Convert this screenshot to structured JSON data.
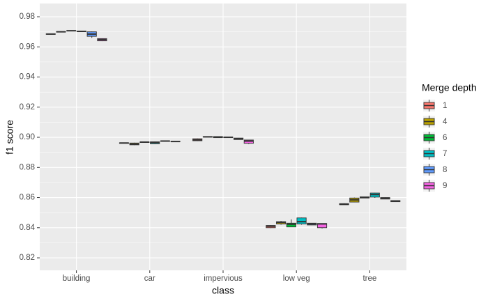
{
  "chart_data": {
    "type": "box",
    "x_label": "class",
    "y_label": "f1 score",
    "categories": [
      "building",
      "car",
      "impervious",
      "low veg",
      "tree"
    ],
    "ylim": [
      0.8117,
      0.9888
    ],
    "yticks": [
      0.82,
      0.84,
      0.86,
      0.88,
      {
        "value": 0.9,
        "label": "0.90"
      },
      0.92,
      0.94,
      0.96,
      0.98
    ],
    "grid": true,
    "legend_title": "Merge depth",
    "legend_position": "right",
    "series": [
      {
        "name": "1",
        "color": "#F8766D",
        "min": [
          0.9684,
          0.896,
          0.8975,
          0.8398,
          0.8552
        ],
        "q1": [
          0.9684,
          0.896,
          0.8977,
          0.84,
          0.8553
        ],
        "median": [
          0.9685,
          0.8962,
          0.8983,
          0.841,
          0.8555
        ],
        "q3": [
          0.9686,
          0.8963,
          0.899,
          0.8415,
          0.856
        ],
        "max": [
          0.9687,
          0.8964,
          0.8992,
          0.8417,
          0.8562
        ]
      },
      {
        "name": "4",
        "color": "#B79F00",
        "min": [
          0.9698,
          0.8948,
          0.9001,
          0.842,
          0.8568
        ],
        "q1": [
          0.9699,
          0.895,
          0.9002,
          0.8425,
          0.857
        ],
        "median": [
          0.97,
          0.8955,
          0.9003,
          0.8435,
          0.8585
        ],
        "q3": [
          0.9701,
          0.8962,
          0.9004,
          0.844,
          0.8597
        ],
        "max": [
          0.9702,
          0.8964,
          0.9005,
          0.8445,
          0.86
        ]
      },
      {
        "name": "6",
        "color": "#00BA38",
        "min": [
          0.9705,
          0.8965,
          0.8997,
          0.8405,
          0.8596
        ],
        "q1": [
          0.9706,
          0.8966,
          0.8998,
          0.8405,
          0.8597
        ],
        "median": [
          0.9707,
          0.8968,
          0.9,
          0.8423,
          0.86
        ],
        "q3": [
          0.9708,
          0.8969,
          0.9005,
          0.843,
          0.8605
        ],
        "max": [
          0.9709,
          0.897,
          0.9006,
          0.8455,
          0.8606
        ]
      },
      {
        "name": "7",
        "color": "#00BFC4",
        "min": [
          0.9701,
          0.8955,
          0.8998,
          0.842,
          0.8598
        ],
        "q1": [
          0.9702,
          0.8957,
          0.8999,
          0.8425,
          0.8603
        ],
        "median": [
          0.9703,
          0.8965,
          0.9,
          0.844,
          0.862
        ],
        "q3": [
          0.9704,
          0.897,
          0.9001,
          0.8465,
          0.863
        ],
        "max": [
          0.9705,
          0.8972,
          0.9002,
          0.8467,
          0.8632
        ]
      },
      {
        "name": "8",
        "color": "#619CFF",
        "min": [
          0.966,
          0.8973,
          0.8984,
          0.8417,
          0.8589
        ],
        "q1": [
          0.967,
          0.8974,
          0.8985,
          0.8418,
          0.859
        ],
        "median": [
          0.9685,
          0.8975,
          0.899,
          0.8425,
          0.8595
        ],
        "q3": [
          0.97,
          0.8976,
          0.8995,
          0.843,
          0.86
        ],
        "max": [
          0.9702,
          0.8977,
          0.8996,
          0.8431,
          0.8601
        ]
      },
      {
        "name": "9",
        "color": "#F564E3",
        "min": [
          0.9638,
          0.897,
          0.8955,
          0.8395,
          0.8571
        ],
        "q1": [
          0.964,
          0.8971,
          0.896,
          0.84,
          0.8572
        ],
        "median": [
          0.9648,
          0.8972,
          0.8975,
          0.8425,
          0.8575
        ],
        "q3": [
          0.9655,
          0.8973,
          0.8982,
          0.8428,
          0.858
        ],
        "max": [
          0.9657,
          0.8974,
          0.8984,
          0.8429,
          0.8581
        ]
      }
    ]
  }
}
